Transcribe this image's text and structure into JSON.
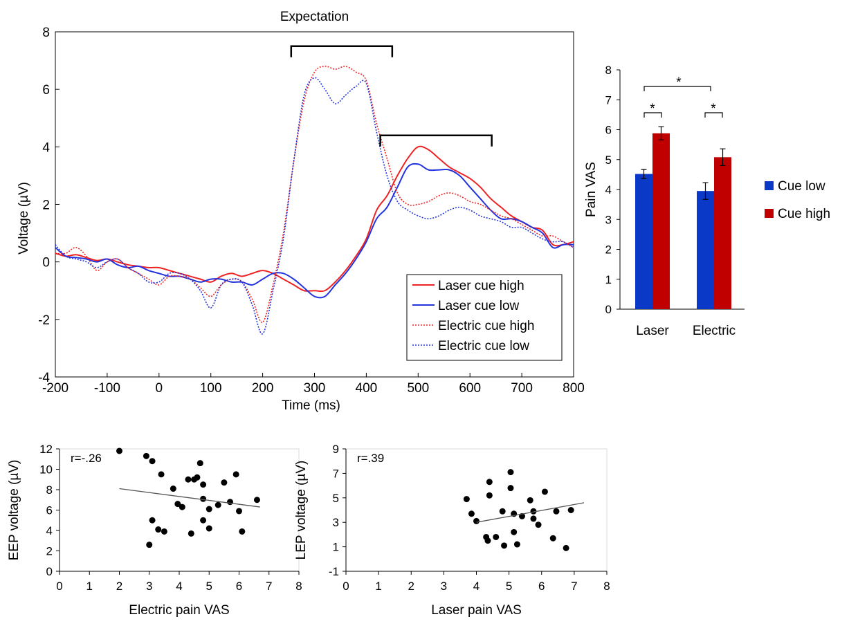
{
  "chart_data": [
    {
      "type": "line",
      "title": "Expectation",
      "xlabel": "Time (ms)",
      "ylabel": "Voltage (µV)",
      "xlim": [
        -200,
        800
      ],
      "ylim": [
        -4,
        8
      ],
      "xticks": [
        -200,
        -100,
        0,
        100,
        200,
        300,
        400,
        500,
        600,
        700,
        800
      ],
      "yticks": [
        -4,
        -2,
        0,
        2,
        4,
        6,
        8
      ],
      "legend_position": "bottom-right",
      "colors": {
        "laser_high": "#ee2222",
        "laser_low": "#2233dd",
        "electric_high": "#ee2222",
        "electric_low": "#2233dd"
      },
      "series": [
        {
          "name": "Laser cue high",
          "style": "solid",
          "x": [
            -200,
            -180,
            -160,
            -140,
            -120,
            -100,
            -80,
            -60,
            -40,
            -20,
            0,
            20,
            40,
            60,
            80,
            100,
            120,
            140,
            160,
            180,
            200,
            220,
            240,
            260,
            280,
            300,
            320,
            340,
            360,
            380,
            400,
            420,
            440,
            460,
            480,
            500,
            520,
            540,
            560,
            580,
            600,
            620,
            640,
            660,
            680,
            700,
            720,
            740,
            760,
            780,
            800
          ],
          "y": [
            0.3,
            0.2,
            0.25,
            0.15,
            0.05,
            0.1,
            0.0,
            -0.1,
            -0.15,
            -0.2,
            -0.2,
            -0.3,
            -0.4,
            -0.5,
            -0.6,
            -0.7,
            -0.5,
            -0.4,
            -0.5,
            -0.4,
            -0.3,
            -0.4,
            -0.6,
            -0.8,
            -1.0,
            -1.0,
            -1.0,
            -0.7,
            -0.3,
            0.2,
            0.8,
            1.8,
            2.3,
            3.0,
            3.6,
            4.0,
            3.9,
            3.6,
            3.3,
            3.1,
            2.9,
            2.6,
            2.2,
            1.9,
            1.6,
            1.4,
            1.2,
            1.1,
            0.6,
            0.6,
            0.7
          ]
        },
        {
          "name": "Laser cue low",
          "style": "solid",
          "x": [
            -200,
            -180,
            -160,
            -140,
            -120,
            -100,
            -80,
            -60,
            -40,
            -20,
            0,
            20,
            40,
            60,
            80,
            100,
            120,
            140,
            160,
            180,
            200,
            220,
            240,
            260,
            280,
            300,
            320,
            340,
            360,
            380,
            400,
            420,
            440,
            460,
            480,
            500,
            520,
            540,
            560,
            580,
            600,
            620,
            640,
            660,
            680,
            700,
            720,
            740,
            760,
            780,
            800
          ],
          "y": [
            0.5,
            0.2,
            0.15,
            0.1,
            0.0,
            0.1,
            -0.1,
            -0.2,
            -0.15,
            -0.3,
            -0.4,
            -0.5,
            -0.5,
            -0.6,
            -0.7,
            -0.6,
            -0.6,
            -0.7,
            -0.7,
            -0.8,
            -0.6,
            -0.4,
            -0.4,
            -0.6,
            -0.9,
            -1.2,
            -1.2,
            -0.8,
            -0.4,
            0.1,
            0.7,
            1.5,
            1.9,
            2.6,
            3.3,
            3.4,
            3.2,
            3.2,
            3.2,
            3.0,
            2.6,
            2.2,
            1.8,
            1.5,
            1.5,
            1.4,
            1.2,
            1.0,
            0.5,
            0.6,
            0.6
          ]
        },
        {
          "name": "Electric cue high",
          "style": "dotted",
          "x": [
            -200,
            -180,
            -160,
            -140,
            -120,
            -100,
            -80,
            -60,
            -40,
            -20,
            0,
            20,
            40,
            60,
            80,
            100,
            120,
            140,
            160,
            180,
            200,
            220,
            240,
            260,
            280,
            300,
            320,
            340,
            360,
            380,
            400,
            420,
            440,
            460,
            480,
            500,
            520,
            540,
            560,
            580,
            600,
            620,
            640,
            660,
            680,
            700,
            720,
            740,
            760,
            780,
            800
          ],
          "y": [
            0.3,
            0.3,
            0.5,
            0.2,
            -0.3,
            0.0,
            0.1,
            -0.2,
            -0.4,
            -0.6,
            -0.8,
            -0.5,
            -0.5,
            -0.6,
            -0.9,
            -1.2,
            -0.8,
            -0.6,
            -0.7,
            -1.3,
            -2.1,
            -0.8,
            1.0,
            3.5,
            5.6,
            6.6,
            6.8,
            6.7,
            6.8,
            6.6,
            6.3,
            4.8,
            3.6,
            2.4,
            2.0,
            2.0,
            2.1,
            2.3,
            2.4,
            2.3,
            2.1,
            2.0,
            1.8,
            1.6,
            1.5,
            1.3,
            1.1,
            0.9,
            0.9,
            0.7,
            0.5
          ]
        },
        {
          "name": "Electric cue low",
          "style": "dotted",
          "x": [
            -200,
            -180,
            -160,
            -140,
            -120,
            -100,
            -80,
            -60,
            -40,
            -20,
            0,
            20,
            40,
            60,
            80,
            100,
            120,
            140,
            160,
            180,
            200,
            220,
            240,
            260,
            280,
            300,
            320,
            340,
            360,
            380,
            400,
            420,
            440,
            460,
            480,
            500,
            520,
            540,
            560,
            580,
            600,
            620,
            640,
            660,
            680,
            700,
            720,
            740,
            760,
            780,
            800
          ],
          "y": [
            0.6,
            0.2,
            0.1,
            0.0,
            -0.2,
            0.0,
            0.1,
            -0.2,
            -0.4,
            -0.7,
            -0.7,
            -0.4,
            -0.4,
            -0.6,
            -1.0,
            -1.6,
            -0.8,
            -0.6,
            -0.7,
            -1.5,
            -2.5,
            -1.0,
            0.8,
            3.5,
            5.8,
            6.4,
            6.0,
            5.5,
            5.8,
            6.1,
            6.2,
            4.5,
            3.0,
            2.1,
            1.8,
            1.6,
            1.5,
            1.6,
            1.8,
            1.9,
            1.8,
            1.6,
            1.5,
            1.4,
            1.2,
            1.2,
            1.0,
            0.8,
            0.7,
            0.7,
            0.5
          ]
        }
      ],
      "brackets": [
        {
          "x_start": 255,
          "x_end": 450,
          "y": 7.5
        },
        {
          "x_start": 427,
          "x_end": 642,
          "y": 4.4
        }
      ]
    },
    {
      "type": "bar",
      "ylabel": "Pain VAS",
      "ylim": [
        0,
        8
      ],
      "yticks": [
        0,
        1,
        2,
        3,
        4,
        5,
        6,
        7,
        8
      ],
      "categories": [
        "Laser",
        "Electric"
      ],
      "legend_position": "right",
      "series": [
        {
          "name": "Cue low",
          "color": "#0a39c7",
          "values": [
            4.52,
            3.95
          ],
          "errors": [
            0.15,
            0.28
          ]
        },
        {
          "name": "Cue high",
          "color": "#c00000",
          "values": [
            5.88,
            5.08
          ],
          "errors": [
            0.22,
            0.28
          ]
        }
      ],
      "significance_marks": [
        {
          "label": "*",
          "between": "Laser cue low vs cue high"
        },
        {
          "label": "*",
          "between": "Electric cue low vs cue high"
        },
        {
          "label": "*",
          "between": "Laser vs Electric"
        }
      ]
    },
    {
      "type": "scatter",
      "xlabel": "Electric pain VAS",
      "ylabel": "EEP voltage (µV)",
      "annotation": "r=-.26",
      "xlim": [
        0,
        8
      ],
      "ylim": [
        0,
        12
      ],
      "xticks": [
        0,
        1,
        2,
        3,
        4,
        5,
        6,
        7,
        8
      ],
      "yticks": [
        0,
        2,
        4,
        6,
        8,
        10,
        12
      ],
      "points": [
        [
          2.0,
          11.8
        ],
        [
          2.9,
          11.3
        ],
        [
          3.1,
          10.8
        ],
        [
          3.4,
          9.5
        ],
        [
          3.8,
          8.1
        ],
        [
          4.3,
          9.0
        ],
        [
          4.5,
          9.0
        ],
        [
          4.6,
          9.2
        ],
        [
          4.7,
          10.6
        ],
        [
          4.8,
          8.5
        ],
        [
          5.9,
          9.5
        ],
        [
          5.5,
          8.7
        ],
        [
          3.1,
          5.0
        ],
        [
          3.3,
          4.1
        ],
        [
          3.5,
          3.9
        ],
        [
          3.95,
          6.6
        ],
        [
          4.1,
          6.3
        ],
        [
          4.8,
          7.1
        ],
        [
          4.8,
          5.0
        ],
        [
          5.0,
          6.1
        ],
        [
          5.3,
          6.5
        ],
        [
          5.7,
          6.8
        ],
        [
          6.0,
          5.9
        ],
        [
          6.6,
          7.0
        ],
        [
          3.0,
          2.6
        ],
        [
          4.4,
          3.7
        ],
        [
          5.0,
          4.2
        ],
        [
          6.1,
          3.9
        ]
      ],
      "trendline": {
        "x": [
          2.0,
          6.7
        ],
        "y": [
          8.1,
          6.3
        ]
      }
    },
    {
      "type": "scatter",
      "xlabel": "Laser pain VAS",
      "ylabel": "LEP voltage (µV)",
      "annotation": "r=.39",
      "xlim": [
        0,
        8
      ],
      "ylim": [
        -1,
        9
      ],
      "xticks": [
        0,
        1,
        2,
        3,
        4,
        5,
        6,
        7,
        8
      ],
      "yticks": [
        -1,
        1,
        3,
        5,
        7,
        9
      ],
      "points": [
        [
          3.7,
          4.9
        ],
        [
          3.85,
          3.7
        ],
        [
          4.0,
          3.1
        ],
        [
          4.3,
          1.8
        ],
        [
          4.35,
          1.5
        ],
        [
          4.4,
          6.3
        ],
        [
          4.4,
          5.2
        ],
        [
          4.6,
          1.8
        ],
        [
          4.8,
          3.9
        ],
        [
          4.85,
          1.1
        ],
        [
          5.05,
          5.8
        ],
        [
          5.05,
          7.1
        ],
        [
          5.15,
          3.7
        ],
        [
          5.15,
          2.2
        ],
        [
          5.25,
          1.2
        ],
        [
          5.4,
          3.5
        ],
        [
          5.65,
          4.8
        ],
        [
          5.75,
          3.9
        ],
        [
          5.75,
          3.3
        ],
        [
          5.9,
          2.8
        ],
        [
          6.1,
          5.5
        ],
        [
          6.35,
          1.7
        ],
        [
          6.45,
          3.9
        ],
        [
          6.75,
          0.9
        ],
        [
          6.9,
          4.0
        ]
      ],
      "trendline": {
        "x": [
          4.0,
          7.3
        ],
        "y": [
          3.0,
          4.6
        ]
      }
    }
  ]
}
